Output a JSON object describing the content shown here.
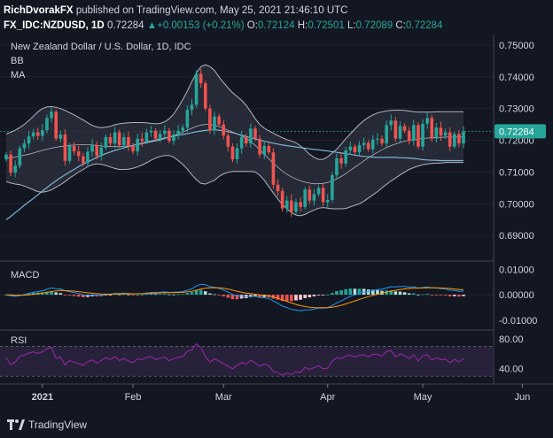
{
  "header": {
    "author": "RichDvorakFX",
    "published_text": "published on TradingView.com, May 25, 2021 21:46:10 UTC",
    "symbol": "FX_IDC:NZDUSD, 1D",
    "last": "0.72284",
    "change": "+0.00153 (+0.21%)",
    "ohlc": {
      "o_label": "O:",
      "o": "0.72124",
      "h_label": "H:",
      "h": "0.72501",
      "l_label": "L:",
      "l": "0.72089",
      "c_label": "C:",
      "c": "0.72284"
    }
  },
  "legend": {
    "title": "New Zealand Dollar / U.S. Dollar, 1D, IDC",
    "bb": "BB",
    "ma": "MA",
    "macd": "MACD",
    "rsi": "RSI"
  },
  "footer": {
    "brand": "TradingView"
  },
  "colors": {
    "bg": "#131722",
    "up": "#26a69a",
    "down": "#ef5350",
    "bb_fill": "#2a2e39",
    "bb_line": "#b2b5be",
    "ma": "#7fb3d5",
    "macd": "#2196f3",
    "signal": "#ff9800",
    "rsi": "#9c27b0",
    "rsi_band": "#3b2a4f",
    "text": "#d1d4dc",
    "grid": "#2a2e39",
    "last_tag": "#26a69a"
  },
  "chart_data": [
    {
      "type": "candlestick",
      "title": "New Zealand Dollar / U.S. Dollar, 1D, IDC",
      "ylim": [
        0.6825,
        0.7525
      ],
      "yticks": [
        "0.75000",
        "0.74000",
        "0.73000",
        "0.72000",
        "0.71000",
        "0.70000",
        "0.69000"
      ],
      "ytick_values": [
        0.75,
        0.74,
        0.73,
        0.72,
        0.71,
        0.7,
        0.69
      ],
      "xticks": [
        "2021",
        "Feb",
        "Mar",
        "Apr",
        "May",
        "Jun"
      ],
      "xtick_index": [
        8,
        28,
        48,
        71,
        92,
        114
      ],
      "last_price_label": "0.72284",
      "last_price": 0.72284,
      "close": [
        0.7155,
        0.7098,
        0.712,
        0.7175,
        0.719,
        0.7212,
        0.7225,
        0.7214,
        0.7232,
        0.727,
        0.729,
        0.7205,
        0.7218,
        0.7135,
        0.7182,
        0.7165,
        0.715,
        0.7128,
        0.7164,
        0.7185,
        0.715,
        0.7177,
        0.721,
        0.719,
        0.7225,
        0.7185,
        0.721,
        0.7182,
        0.7165,
        0.7205,
        0.7197,
        0.7225,
        0.723,
        0.7205,
        0.722,
        0.723,
        0.7198,
        0.7218,
        0.723,
        0.724,
        0.7296,
        0.7312,
        0.741,
        0.738,
        0.73,
        0.7232,
        0.7275,
        0.725,
        0.7215,
        0.718,
        0.714,
        0.7175,
        0.721,
        0.719,
        0.7237,
        0.7205,
        0.7155,
        0.7182,
        0.7162,
        0.706,
        0.704,
        0.6985,
        0.701,
        0.6975,
        0.7005,
        0.699,
        0.7045,
        0.701,
        0.703,
        0.705,
        0.7005,
        0.7012,
        0.709,
        0.7143,
        0.7127,
        0.7168,
        0.718,
        0.7162,
        0.7185,
        0.7192,
        0.7172,
        0.7202,
        0.7205,
        0.719,
        0.7248,
        0.7262,
        0.7205,
        0.7245,
        0.723,
        0.7198,
        0.7248,
        0.718,
        0.7252,
        0.727,
        0.7205,
        0.724,
        0.7215,
        0.7225,
        0.718,
        0.722,
        0.719,
        0.7228
      ],
      "ma": [
        0.695,
        0.696,
        0.6972,
        0.6983,
        0.6995,
        0.7006,
        0.7017,
        0.7028,
        0.704,
        0.7051,
        0.7062,
        0.7072,
        0.7082,
        0.7091,
        0.71,
        0.7108,
        0.7117,
        0.7125,
        0.7132,
        0.7139,
        0.7146,
        0.7152,
        0.7158,
        0.7163,
        0.7168,
        0.7172,
        0.7176,
        0.718,
        0.7184,
        0.7188,
        0.7191,
        0.7195,
        0.7198,
        0.7201,
        0.7204,
        0.7207,
        0.721,
        0.7213,
        0.7216,
        0.7218,
        0.7221,
        0.7224,
        0.7227,
        0.7229,
        0.7231,
        0.7233,
        0.7233,
        0.7232,
        0.723,
        0.7227,
        0.7224,
        0.722,
        0.7216,
        0.7212,
        0.7208,
        0.7204,
        0.72,
        0.7197,
        0.7194,
        0.7191,
        0.7188,
        0.7185,
        0.7183,
        0.7181,
        0.7179,
        0.7177,
        0.7175,
        0.7173,
        0.7171,
        0.717,
        0.7168,
        0.7166,
        0.7164,
        0.7162,
        0.716,
        0.7158,
        0.7156,
        0.7153,
        0.7151,
        0.7149,
        0.7148,
        0.7147,
        0.7146,
        0.7146,
        0.7146,
        0.7146,
        0.7146,
        0.7145,
        0.7145,
        0.7144,
        0.7143,
        0.7141,
        0.7139,
        0.7138,
        0.7137,
        0.7137,
        0.7136,
        0.7136,
        0.7136,
        0.7136,
        0.7136,
        0.7136
      ],
      "bb_upper": [
        0.722,
        0.7225,
        0.7232,
        0.724,
        0.725,
        0.7262,
        0.7276,
        0.729,
        0.73,
        0.7305,
        0.7306,
        0.7304,
        0.73,
        0.7294,
        0.7287,
        0.728,
        0.7272,
        0.7264,
        0.7255,
        0.7247,
        0.7242,
        0.724,
        0.7241,
        0.7244,
        0.7249,
        0.7252,
        0.7254,
        0.7255,
        0.7256,
        0.7256,
        0.7256,
        0.7255,
        0.7253,
        0.7252,
        0.7253,
        0.7258,
        0.7268,
        0.7283,
        0.7304,
        0.7328,
        0.7355,
        0.7385,
        0.7412,
        0.7432,
        0.7438,
        0.7432,
        0.742,
        0.74,
        0.7382,
        0.7365,
        0.735,
        0.7338,
        0.7326,
        0.731,
        0.729,
        0.7268,
        0.725,
        0.7238,
        0.723,
        0.7222,
        0.7215,
        0.7208,
        0.7202,
        0.7198,
        0.7192,
        0.7182,
        0.717,
        0.7156,
        0.7146,
        0.714,
        0.714,
        0.7148,
        0.716,
        0.7172,
        0.7188,
        0.7205,
        0.722,
        0.7235,
        0.725,
        0.7262,
        0.7272,
        0.728,
        0.7286,
        0.729,
        0.7293,
        0.7294,
        0.7295,
        0.7295,
        0.7294,
        0.7292,
        0.729,
        0.7289,
        0.7289,
        0.7289,
        0.7289,
        0.729,
        0.729,
        0.729,
        0.729,
        0.729,
        0.729,
        0.729
      ],
      "bb_basis": [
        0.7145,
        0.7145,
        0.7147,
        0.715,
        0.7153,
        0.7156,
        0.716,
        0.7164,
        0.7168,
        0.7172,
        0.7175,
        0.7178,
        0.718,
        0.7182,
        0.7184,
        0.7185,
        0.7186,
        0.7186,
        0.7186,
        0.7185,
        0.7184,
        0.7182,
        0.7181,
        0.718,
        0.718,
        0.718,
        0.7181,
        0.7182,
        0.7184,
        0.7186,
        0.7189,
        0.7192,
        0.7195,
        0.7198,
        0.7201,
        0.7205,
        0.721,
        0.7215,
        0.722,
        0.7226,
        0.7232,
        0.7238,
        0.7244,
        0.7248,
        0.725,
        0.725,
        0.7247,
        0.7243,
        0.7238,
        0.7232,
        0.7226,
        0.722,
        0.7214,
        0.7206,
        0.7196,
        0.7184,
        0.717,
        0.7156,
        0.7142,
        0.7128,
        0.7115,
        0.7103,
        0.7093,
        0.7085,
        0.7078,
        0.7072,
        0.7068,
        0.7065,
        0.7063,
        0.7063,
        0.7064,
        0.7067,
        0.7072,
        0.7078,
        0.7086,
        0.7095,
        0.7105,
        0.7115,
        0.7125,
        0.7135,
        0.7145,
        0.7154,
        0.7162,
        0.717,
        0.7177,
        0.7183,
        0.7188,
        0.7193,
        0.7197,
        0.72,
        0.7202,
        0.7204,
        0.7206,
        0.7207,
        0.7208,
        0.7209,
        0.7209,
        0.721,
        0.721,
        0.721,
        0.721,
        0.721
      ],
      "bb_lower": [
        0.707,
        0.7065,
        0.7062,
        0.706,
        0.7056,
        0.705,
        0.7044,
        0.7038,
        0.7036,
        0.7039,
        0.7044,
        0.7052,
        0.706,
        0.707,
        0.7081,
        0.709,
        0.71,
        0.7108,
        0.7117,
        0.7123,
        0.7126,
        0.7124,
        0.7121,
        0.7116,
        0.7111,
        0.7108,
        0.7108,
        0.7109,
        0.7112,
        0.7116,
        0.7122,
        0.7129,
        0.7137,
        0.7144,
        0.7149,
        0.7152,
        0.7152,
        0.7147,
        0.7136,
        0.7124,
        0.7109,
        0.7091,
        0.7076,
        0.7064,
        0.7062,
        0.7068,
        0.7074,
        0.7086,
        0.7094,
        0.7099,
        0.7102,
        0.7102,
        0.7102,
        0.7102,
        0.7102,
        0.71,
        0.709,
        0.7074,
        0.7054,
        0.7034,
        0.7015,
        0.6998,
        0.6984,
        0.6972,
        0.6964,
        0.6962,
        0.6966,
        0.6974,
        0.698,
        0.6986,
        0.6988,
        0.6986,
        0.6984,
        0.6984,
        0.6984,
        0.6985,
        0.699,
        0.6995,
        0.7,
        0.7008,
        0.7018,
        0.7028,
        0.7038,
        0.705,
        0.7061,
        0.7072,
        0.7081,
        0.7091,
        0.71,
        0.7108,
        0.7114,
        0.7119,
        0.7123,
        0.7125,
        0.7127,
        0.7128,
        0.7128,
        0.713,
        0.713,
        0.713,
        0.713,
        0.713
      ]
    },
    {
      "type": "macd",
      "title": "MACD",
      "ylim": [
        -0.0132,
        0.0122
      ],
      "yticks": [
        "0.01000",
        "0.00000",
        "-0.01000"
      ],
      "ytick_values": [
        0.01,
        0.0,
        -0.01
      ]
    },
    {
      "type": "line",
      "title": "RSI",
      "ylim": [
        22,
        88
      ],
      "yticks": [
        "80.00",
        "40.00"
      ],
      "ytick_values": [
        80,
        40
      ],
      "band": [
        30,
        70
      ]
    }
  ]
}
